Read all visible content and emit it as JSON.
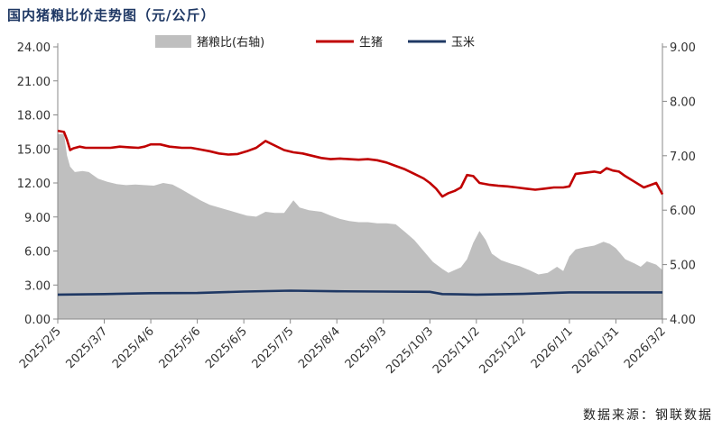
{
  "header": {
    "title": "国内猪粮比价走势图（元/公斤）"
  },
  "footer": {
    "source": "数据来源：钢联数据"
  },
  "colors": {
    "ratio_fill": "#bfbfbf",
    "hog_line": "#c00000",
    "corn_line": "#1f3864"
  },
  "chart_data": {
    "type": "line",
    "title": "国内猪粮比价走势图（元/公斤）",
    "x_tick_labels": [
      "2025/2/5",
      "2025/3/7",
      "2025/4/6",
      "2025/5/6",
      "2025/6/5",
      "2025/7/5",
      "2025/8/4",
      "2025/9/3",
      "2025/10/3",
      "2025/11/2",
      "2025/12/2",
      "2026/1/1",
      "2026/1/31",
      "2026/3/2"
    ],
    "x_range_days": [
      0,
      390
    ],
    "y_left": {
      "min": 0,
      "max": 24,
      "ticks": [
        "0.00",
        "3.00",
        "6.00",
        "9.00",
        "12.00",
        "15.00",
        "18.00",
        "21.00",
        "24.00"
      ]
    },
    "y_right": {
      "min": 4,
      "max": 9,
      "ticks": [
        "4.00",
        "5.00",
        "6.00",
        "7.00",
        "8.00",
        "9.00"
      ]
    },
    "legend": {
      "placement": "top",
      "entries": [
        "猪粮比(右轴)",
        "生猪",
        "玉米"
      ]
    },
    "series": [
      {
        "name": "猪粮比(右轴)",
        "type": "area",
        "axis": "right",
        "points": [
          [
            0,
            7.4
          ],
          [
            4,
            7.4
          ],
          [
            6,
            7.0
          ],
          [
            8,
            6.8
          ],
          [
            11,
            6.7
          ],
          [
            16,
            6.72
          ],
          [
            20,
            6.7
          ],
          [
            26,
            6.58
          ],
          [
            32,
            6.52
          ],
          [
            38,
            6.48
          ],
          [
            44,
            6.46
          ],
          [
            50,
            6.47
          ],
          [
            56,
            6.46
          ],
          [
            62,
            6.45
          ],
          [
            68,
            6.5
          ],
          [
            74,
            6.47
          ],
          [
            80,
            6.38
          ],
          [
            86,
            6.28
          ],
          [
            92,
            6.18
          ],
          [
            98,
            6.1
          ],
          [
            104,
            6.05
          ],
          [
            110,
            6.0
          ],
          [
            116,
            5.95
          ],
          [
            122,
            5.9
          ],
          [
            128,
            5.88
          ],
          [
            134,
            5.97
          ],
          [
            140,
            5.95
          ],
          [
            146,
            5.95
          ],
          [
            152,
            6.18
          ],
          [
            156,
            6.05
          ],
          [
            162,
            6.0
          ],
          [
            170,
            5.97
          ],
          [
            176,
            5.9
          ],
          [
            182,
            5.84
          ],
          [
            188,
            5.8
          ],
          [
            194,
            5.78
          ],
          [
            200,
            5.78
          ],
          [
            206,
            5.76
          ],
          [
            212,
            5.76
          ],
          [
            218,
            5.74
          ],
          [
            224,
            5.6
          ],
          [
            230,
            5.45
          ],
          [
            236,
            5.25
          ],
          [
            242,
            5.05
          ],
          [
            248,
            4.92
          ],
          [
            252,
            4.85
          ],
          [
            256,
            4.9
          ],
          [
            260,
            4.95
          ],
          [
            264,
            5.1
          ],
          [
            268,
            5.4
          ],
          [
            272,
            5.62
          ],
          [
            276,
            5.45
          ],
          [
            280,
            5.2
          ],
          [
            286,
            5.08
          ],
          [
            292,
            5.02
          ],
          [
            298,
            4.97
          ],
          [
            304,
            4.9
          ],
          [
            310,
            4.82
          ],
          [
            316,
            4.85
          ],
          [
            322,
            4.96
          ],
          [
            326,
            4.88
          ],
          [
            330,
            5.15
          ],
          [
            334,
            5.28
          ],
          [
            340,
            5.32
          ],
          [
            346,
            5.35
          ],
          [
            352,
            5.42
          ],
          [
            356,
            5.38
          ],
          [
            360,
            5.3
          ],
          [
            366,
            5.1
          ],
          [
            372,
            5.02
          ],
          [
            376,
            4.96
          ],
          [
            380,
            5.06
          ],
          [
            386,
            5.0
          ],
          [
            390,
            4.9
          ]
        ]
      },
      {
        "name": "生猪",
        "type": "line",
        "axis": "left",
        "points": [
          [
            0,
            16.6
          ],
          [
            4,
            16.5
          ],
          [
            6,
            15.8
          ],
          [
            8,
            14.9
          ],
          [
            10,
            15.05
          ],
          [
            14,
            15.2
          ],
          [
            18,
            15.1
          ],
          [
            22,
            15.1
          ],
          [
            28,
            15.1
          ],
          [
            34,
            15.1
          ],
          [
            40,
            15.2
          ],
          [
            46,
            15.15
          ],
          [
            52,
            15.1
          ],
          [
            56,
            15.2
          ],
          [
            60,
            15.4
          ],
          [
            66,
            15.4
          ],
          [
            72,
            15.2
          ],
          [
            80,
            15.1
          ],
          [
            86,
            15.1
          ],
          [
            92,
            14.95
          ],
          [
            98,
            14.8
          ],
          [
            104,
            14.6
          ],
          [
            110,
            14.5
          ],
          [
            116,
            14.55
          ],
          [
            122,
            14.8
          ],
          [
            128,
            15.1
          ],
          [
            134,
            15.7
          ],
          [
            140,
            15.3
          ],
          [
            146,
            14.9
          ],
          [
            152,
            14.7
          ],
          [
            158,
            14.6
          ],
          [
            164,
            14.4
          ],
          [
            170,
            14.2
          ],
          [
            176,
            14.1
          ],
          [
            182,
            14.15
          ],
          [
            188,
            14.1
          ],
          [
            194,
            14.05
          ],
          [
            200,
            14.1
          ],
          [
            206,
            14.0
          ],
          [
            212,
            13.8
          ],
          [
            218,
            13.5
          ],
          [
            224,
            13.2
          ],
          [
            230,
            12.8
          ],
          [
            236,
            12.4
          ],
          [
            240,
            12.0
          ],
          [
            244,
            11.5
          ],
          [
            248,
            10.8
          ],
          [
            252,
            11.1
          ],
          [
            256,
            11.3
          ],
          [
            260,
            11.6
          ],
          [
            264,
            12.7
          ],
          [
            268,
            12.6
          ],
          [
            272,
            12.0
          ],
          [
            278,
            11.85
          ],
          [
            284,
            11.75
          ],
          [
            290,
            11.7
          ],
          [
            296,
            11.6
          ],
          [
            302,
            11.5
          ],
          [
            308,
            11.4
          ],
          [
            314,
            11.5
          ],
          [
            320,
            11.6
          ],
          [
            326,
            11.6
          ],
          [
            330,
            11.7
          ],
          [
            334,
            12.8
          ],
          [
            340,
            12.9
          ],
          [
            346,
            13.0
          ],
          [
            350,
            12.9
          ],
          [
            354,
            13.3
          ],
          [
            358,
            13.1
          ],
          [
            362,
            13.0
          ],
          [
            366,
            12.6
          ],
          [
            372,
            12.1
          ],
          [
            378,
            11.6
          ],
          [
            382,
            11.8
          ],
          [
            386,
            12.0
          ],
          [
            390,
            11.0
          ]
        ]
      },
      {
        "name": "玉米",
        "type": "line",
        "axis": "left",
        "points": [
          [
            0,
            2.15
          ],
          [
            30,
            2.2
          ],
          [
            60,
            2.28
          ],
          [
            90,
            2.3
          ],
          [
            120,
            2.42
          ],
          [
            150,
            2.5
          ],
          [
            180,
            2.45
          ],
          [
            210,
            2.42
          ],
          [
            240,
            2.4
          ],
          [
            248,
            2.2
          ],
          [
            270,
            2.15
          ],
          [
            300,
            2.22
          ],
          [
            330,
            2.35
          ],
          [
            360,
            2.35
          ],
          [
            390,
            2.35
          ]
        ]
      }
    ]
  }
}
